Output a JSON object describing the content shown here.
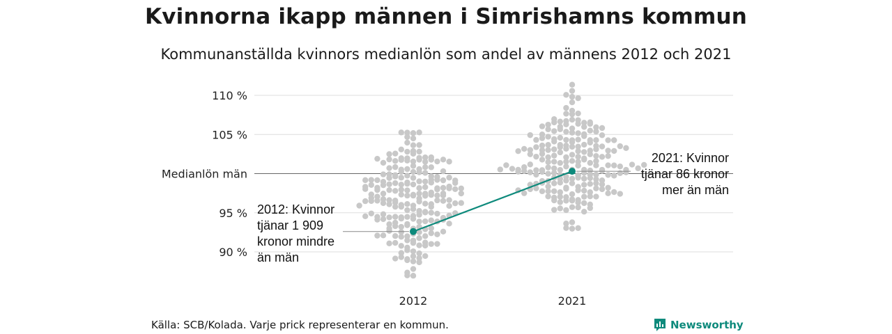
{
  "title": "Kvinnorna ikapp männen i Simrishamns kommun",
  "subtitle": "Kommunanställda kvinnors medianlön som andel av männens 2012 och 2021",
  "source": "Källa: SCB/Kolada. Varje prick representerar en kommun.",
  "brand": "Newsworthy",
  "colors": {
    "dots": "#c8c8c8",
    "highlight": "#0e8a7c",
    "grid": "#dddddd",
    "reference_line": "#666666"
  },
  "chart_data": {
    "type": "scatter",
    "subtype": "beeswarm",
    "categories": [
      "2012",
      "2021"
    ],
    "ylim": [
      86,
      112
    ],
    "yticks": [
      {
        "value": 90,
        "label": "90 %"
      },
      {
        "value": 95,
        "label": "95 %"
      },
      {
        "value": 105,
        "label": "105 %"
      },
      {
        "value": 110,
        "label": "110 %"
      }
    ],
    "reference_line": {
      "value": 100,
      "label": "Medianlön män"
    },
    "grid": true,
    "distributions": [
      {
        "category": "2012",
        "min": 87.0,
        "max": 105.2,
        "center": 96.5
      },
      {
        "category": "2021",
        "min": 93.0,
        "max": 111.3,
        "center": 101.0
      }
    ],
    "highlight_series": {
      "points": [
        {
          "x": "2012",
          "y": 92.6
        },
        {
          "x": "2021",
          "y": 100.3
        }
      ],
      "annotations": [
        "2012: Kvinnor tjänar 1 909 kronor mindre än män",
        "2021: Kvinnor tjänar 86 kronor mer än män"
      ]
    }
  }
}
